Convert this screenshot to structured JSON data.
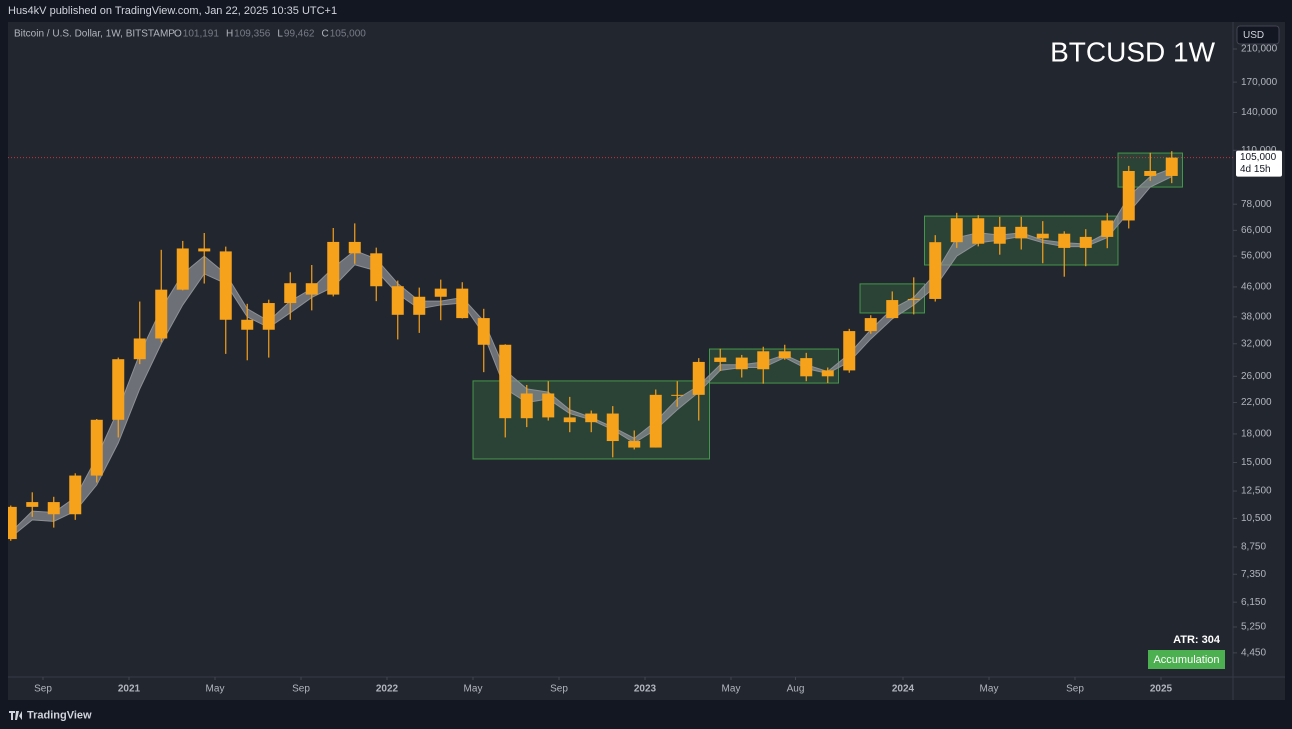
{
  "header": {
    "published": "Hus4kV published on TradingView.com, Jan 22, 2025 10:35 UTC+1",
    "brand": "TradingView"
  },
  "chart_data": {
    "type": "candlestick",
    "title": "BTCUSD 1W",
    "symbol_line": "Bitcoin / U.S. Dollar, 1W, BITSTAMP",
    "ohlc_legend": [
      {
        "key": "O",
        "value": "101,191"
      },
      {
        "key": "H",
        "value": "109,356"
      },
      {
        "key": "L",
        "value": "99,462"
      },
      {
        "key": "C",
        "value": "105,000"
      }
    ],
    "currency": "USD",
    "last_price": {
      "value": 105000,
      "label": "105,000"
    },
    "countdown": "4d 15h",
    "indicator_label": "ATR: 304",
    "badge": "Accumulation",
    "color": "#f7a21b",
    "band_color": "#8e9096",
    "zone_color": "#4caf50",
    "log_scale": true,
    "x": [
      "2020-07",
      "2020-08",
      "2020-09",
      "2020-10",
      "2020-11",
      "2020-12",
      "2021-01",
      "2021-02",
      "2021-03",
      "2021-04",
      "2021-05",
      "2021-06",
      "2021-07",
      "2021-08",
      "2021-09",
      "2021-10",
      "2021-11",
      "2021-12",
      "2022-01",
      "2022-02",
      "2022-03",
      "2022-04",
      "2022-05",
      "2022-06",
      "2022-07",
      "2022-08",
      "2022-09",
      "2022-10",
      "2022-11",
      "2022-12",
      "2023-01",
      "2023-02",
      "2023-03",
      "2023-04",
      "2023-05",
      "2023-06",
      "2023-07",
      "2023-08",
      "2023-09",
      "2023-10",
      "2023-11",
      "2023-12",
      "2024-01",
      "2024-02",
      "2024-03",
      "2024-04",
      "2024-05",
      "2024-06",
      "2024-07",
      "2024-08",
      "2024-09",
      "2024-10",
      "2024-11",
      "2024-12",
      "2025-01"
    ],
    "open": [
      9200,
      11300,
      11650,
      10780,
      13800,
      19700,
      29000,
      33100,
      45200,
      58800,
      57700,
      37300,
      35000,
      41500,
      47100,
      43800,
      61300,
      57000,
      46200,
      38500,
      43200,
      45500,
      37700,
      31800,
      19900,
      23300,
      20000,
      19400,
      20500,
      17200,
      16500,
      23100,
      23100,
      28500,
      29300,
      27200,
      30500,
      29200,
      26000,
      27000,
      34700,
      37700,
      42300,
      42600,
      61200,
      71300,
      60600,
      67500,
      62700,
      64600,
      59000,
      63300,
      70300,
      96400,
      93400
    ],
    "high": [
      11400,
      12400,
      12050,
      14000,
      19800,
      29300,
      41900,
      58300,
      61700,
      64900,
      59500,
      41300,
      42400,
      50500,
      52900,
      67000,
      69000,
      59100,
      47900,
      45800,
      48200,
      47400,
      40000,
      31900,
      24600,
      25200,
      22800,
      20900,
      21500,
      18400,
      23900,
      25200,
      29200,
      31000,
      29800,
      31400,
      31800,
      30200,
      27500,
      35200,
      38400,
      44700,
      48900,
      64000,
      73800,
      72700,
      71900,
      71900,
      70000,
      65600,
      66500,
      73600,
      99600,
      108300,
      109400
    ],
    "low": [
      9100,
      10600,
      9900,
      10400,
      13200,
      17600,
      28100,
      32300,
      45000,
      47000,
      30000,
      28800,
      29300,
      37300,
      39600,
      43300,
      53300,
      42000,
      32900,
      34300,
      37200,
      37600,
      26700,
      17600,
      18800,
      19600,
      18200,
      18200,
      15500,
      16300,
      16500,
      21400,
      19600,
      26900,
      25800,
      24800,
      28900,
      25200,
      24900,
      26600,
      34100,
      37600,
      38600,
      41900,
      59000,
      59600,
      56500,
      58400,
      53500,
      49100,
      52500,
      58900,
      66800,
      90500,
      89200
    ],
    "close": [
      11300,
      11650,
      10780,
      13800,
      19700,
      29000,
      33100,
      45200,
      58800,
      57700,
      37300,
      35000,
      41500,
      47100,
      43800,
      61300,
      57000,
      46200,
      38500,
      43200,
      45500,
      37700,
      31800,
      19900,
      23300,
      20000,
      19400,
      20500,
      17200,
      16500,
      23100,
      23100,
      28500,
      29300,
      27200,
      30500,
      29200,
      26000,
      27000,
      34700,
      37700,
      42300,
      42600,
      61200,
      71300,
      60600,
      67500,
      62700,
      64600,
      59000,
      63300,
      70300,
      96400,
      93400,
      105000
    ],
    "band_upper": [
      9600,
      11000,
      10900,
      12000,
      15500,
      21000,
      30000,
      40000,
      50000,
      56000,
      50000,
      40000,
      37000,
      42000,
      45500,
      52000,
      58000,
      55000,
      47000,
      42000,
      42000,
      43000,
      37000,
      27000,
      24000,
      23500,
      21000,
      20000,
      18800,
      17500,
      19500,
      22500,
      24500,
      28000,
      28000,
      28500,
      29800,
      28000,
      26800,
      30000,
      35000,
      40000,
      43000,
      50000,
      63000,
      65000,
      64000,
      65000,
      62000,
      61000,
      60500,
      65000,
      82000,
      93000,
      98000
    ],
    "band_lower": [
      9300,
      10400,
      10300,
      11000,
      13000,
      17000,
      24000,
      32000,
      41000,
      50000,
      47000,
      38000,
      35500,
      39000,
      43000,
      46000,
      53000,
      51000,
      44000,
      40000,
      41000,
      41500,
      34000,
      24000,
      22000,
      22500,
      20500,
      19700,
      18500,
      17000,
      18500,
      21000,
      23500,
      27000,
      27500,
      27500,
      29300,
      27300,
      26500,
      28500,
      33000,
      37500,
      41000,
      46000,
      56000,
      61000,
      62000,
      63500,
      61000,
      59500,
      59500,
      63000,
      74000,
      87000,
      93000
    ],
    "zones": [
      {
        "x0": "2022-05",
        "x1": "2023-03",
        "low": 15340,
        "high": 25250
      },
      {
        "x0": "2023-04",
        "x1": "2023-09",
        "low": 24900,
        "high": 30950
      },
      {
        "x0": "2023-11",
        "x1": "2024-01",
        "low": 38950,
        "high": 46900
      },
      {
        "x0": "2024-02",
        "x1": "2024-10",
        "low": 52900,
        "high": 72300
      },
      {
        "x0": "2024-11",
        "x1": "2025-01",
        "low": 87000,
        "high": 108100
      }
    ],
    "ylim": [
      3815,
      249500
    ],
    "yticks": [
      {
        "value": 210000,
        "label": "210,000"
      },
      {
        "value": 170000,
        "label": "170,000"
      },
      {
        "value": 140000,
        "label": "140,000"
      },
      {
        "value": 110000,
        "label": "110,000"
      },
      {
        "value": 78000,
        "label": "78,000"
      },
      {
        "value": 66000,
        "label": "66,000"
      },
      {
        "value": 56000,
        "label": "56,000"
      },
      {
        "value": 46000,
        "label": "46,000"
      },
      {
        "value": 38000,
        "label": "38,000"
      },
      {
        "value": 32000,
        "label": "32,000"
      },
      {
        "value": 26000,
        "label": "26,000"
      },
      {
        "value": 22000,
        "label": "22,000"
      },
      {
        "value": 18000,
        "label": "18,000"
      },
      {
        "value": 15000,
        "label": "15,000"
      },
      {
        "value": 12500,
        "label": "12,500"
      },
      {
        "value": 10500,
        "label": "10,500"
      },
      {
        "value": 8750,
        "label": "8,750"
      },
      {
        "value": 7350,
        "label": "7,350"
      },
      {
        "value": 6150,
        "label": "6,150"
      },
      {
        "value": 5250,
        "label": "5,250"
      },
      {
        "value": 4450,
        "label": "4,450"
      }
    ],
    "xticks": [
      {
        "value": "2020-09",
        "label": "Sep"
      },
      {
        "value": "2021-01",
        "label": "2021"
      },
      {
        "value": "2021-05",
        "label": "May"
      },
      {
        "value": "2021-09",
        "label": "Sep"
      },
      {
        "value": "2022-01",
        "label": "2022"
      },
      {
        "value": "2022-05",
        "label": "May"
      },
      {
        "value": "2022-09",
        "label": "Sep"
      },
      {
        "value": "2023-01",
        "label": "2023"
      },
      {
        "value": "2023-05",
        "label": "May"
      },
      {
        "value": "2023-08",
        "label": "Aug"
      },
      {
        "value": "2024-01",
        "label": "2024"
      },
      {
        "value": "2024-05",
        "label": "May"
      },
      {
        "value": "2024-09",
        "label": "Sep"
      },
      {
        "value": "2025-01",
        "label": "2025"
      }
    ]
  }
}
